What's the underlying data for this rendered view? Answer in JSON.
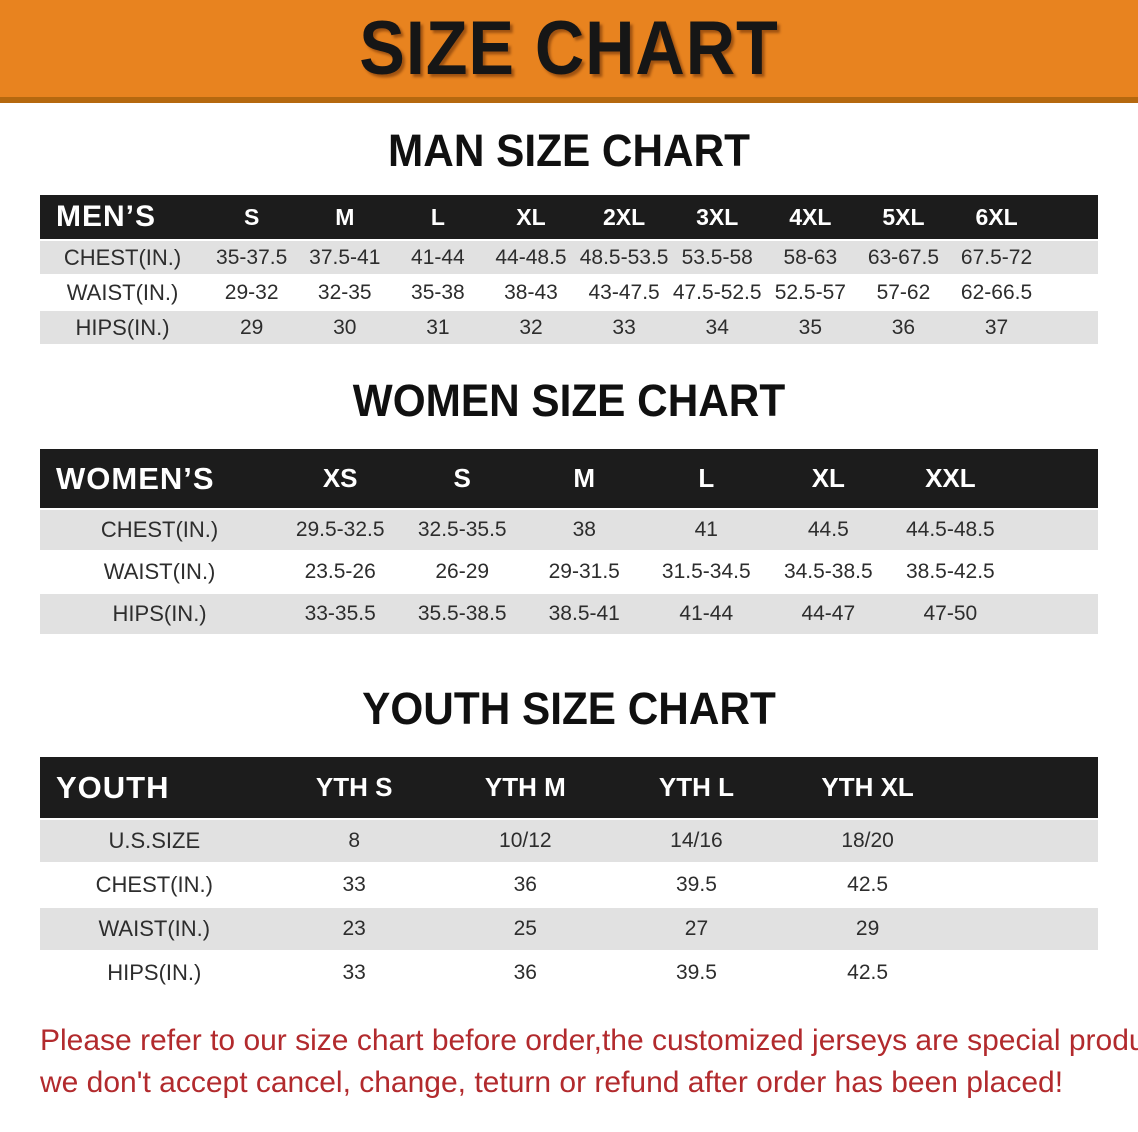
{
  "banner": {
    "title": "SIZE CHART"
  },
  "sections": [
    {
      "heading": "MAN SIZE CHART",
      "table": {
        "header": [
          "MEN’S",
          "S",
          "M",
          "L",
          "XL",
          "2XL",
          "3XL",
          "4XL",
          "5XL",
          "6XL"
        ],
        "rows": [
          [
            "CHEST(IN.)",
            "35-37.5",
            "37.5-41",
            "41-44",
            "44-48.5",
            "48.5-53.5",
            "53.5-58",
            "58-63",
            "63-67.5",
            "67.5-72"
          ],
          [
            "WAIST(IN.)",
            "29-32",
            "32-35",
            "35-38",
            "38-43",
            "43-47.5",
            "47.5-52.5",
            "52.5-57",
            "57-62",
            "62-66.5"
          ],
          [
            "HIPS(IN.)",
            "29",
            "30",
            "31",
            "32",
            "33",
            "34",
            "35",
            "36",
            "37"
          ]
        ]
      }
    },
    {
      "heading": "WOMEN SIZE CHART",
      "table": {
        "header": [
          "WOMEN’S",
          "XS",
          "S",
          "M",
          "L",
          "XL",
          "XXL"
        ],
        "rows": [
          [
            "CHEST(IN.)",
            "29.5-32.5",
            "32.5-35.5",
            "38",
            "41",
            "44.5",
            "44.5-48.5"
          ],
          [
            "WAIST(IN.)",
            "23.5-26",
            "26-29",
            "29-31.5",
            "31.5-34.5",
            "34.5-38.5",
            "38.5-42.5"
          ],
          [
            "HIPS(IN.)",
            "33-35.5",
            "35.5-38.5",
            "38.5-41",
            "41-44",
            "44-47",
            "47-50"
          ]
        ]
      }
    },
    {
      "heading": "YOUTH SIZE CHART",
      "table": {
        "header": [
          "YOUTH",
          "YTH S",
          "YTH M",
          "YTH L",
          "YTH XL"
        ],
        "rows": [
          [
            "U.S.SIZE",
            "8",
            "10/12",
            "14/16",
            "18/20"
          ],
          [
            "CHEST(IN.)",
            "33",
            "36",
            "39.5",
            "42.5"
          ],
          [
            "WAIST(IN.)",
            "23",
            "25",
            "27",
            "29"
          ],
          [
            "HIPS(IN.)",
            "33",
            "36",
            "39.5",
            "42.5"
          ]
        ]
      }
    }
  ],
  "disclaimer": {
    "lines": [
      "Please refer to our size chart before order,the customized jerseys are special products,",
      "we don't accept cancel, change, teturn or refund after order has been placed!"
    ]
  },
  "colors": {
    "banner_orange": "#E8831F",
    "banner_edge": "#B5680F",
    "header_bar": "#1C1C1C",
    "stripe_gray": "#E1E1E1",
    "disclaimer_red": "#B22A2D"
  }
}
